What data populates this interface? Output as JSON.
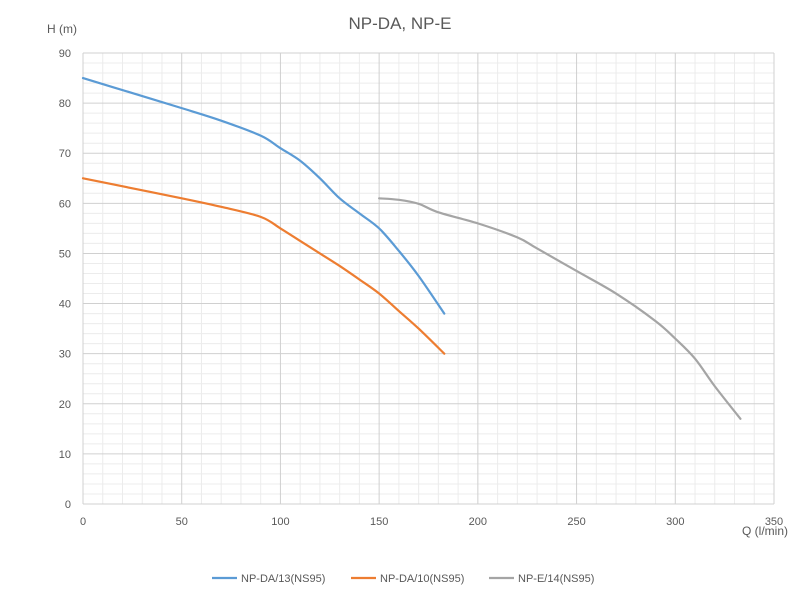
{
  "chart_data": {
    "type": "line",
    "title": "NP-DA, NP-E",
    "xlabel": "Q (l/min)",
    "ylabel": "H (m)",
    "xlim": [
      0,
      350
    ],
    "ylim": [
      0,
      90
    ],
    "x_ticks": [
      "0",
      "50",
      "100",
      "150",
      "200",
      "250",
      "300",
      "350"
    ],
    "y_ticks": [
      "0",
      "10",
      "20",
      "30",
      "40",
      "50",
      "60",
      "70",
      "80",
      "90"
    ],
    "grid": true,
    "legend_position": "bottom",
    "series": [
      {
        "name": "NP-DA/13(NS95)",
        "color": "#5B9BD5",
        "points": [
          [
            0,
            85
          ],
          [
            25,
            82
          ],
          [
            50,
            79
          ],
          [
            70,
            76.5
          ],
          [
            90,
            73.5
          ],
          [
            100,
            71
          ],
          [
            110,
            68.5
          ],
          [
            120,
            65
          ],
          [
            130,
            61
          ],
          [
            140,
            58
          ],
          [
            150,
            55
          ],
          [
            160,
            50.5
          ],
          [
            170,
            45.5
          ],
          [
            183,
            38
          ]
        ]
      },
      {
        "name": "NP-DA/10(NS95)",
        "color": "#ED7D31",
        "points": [
          [
            0,
            65
          ],
          [
            25,
            63
          ],
          [
            50,
            61
          ],
          [
            70,
            59.3
          ],
          [
            90,
            57.3
          ],
          [
            100,
            55
          ],
          [
            110,
            52.5
          ],
          [
            120,
            50
          ],
          [
            130,
            47.5
          ],
          [
            140,
            44.8
          ],
          [
            150,
            42
          ],
          [
            160,
            38.5
          ],
          [
            170,
            35
          ],
          [
            183,
            30
          ]
        ]
      },
      {
        "name": "NP-E/14(NS95)",
        "color": "#A5A5A5",
        "points": [
          [
            150,
            61
          ],
          [
            160,
            60.7
          ],
          [
            170,
            59.9
          ],
          [
            180,
            58.2
          ],
          [
            200,
            56
          ],
          [
            220,
            53.2
          ],
          [
            230,
            51
          ],
          [
            250,
            46.5
          ],
          [
            270,
            42
          ],
          [
            290,
            36.5
          ],
          [
            300,
            33
          ],
          [
            310,
            29
          ],
          [
            320,
            23.5
          ],
          [
            333,
            17
          ]
        ]
      }
    ]
  }
}
